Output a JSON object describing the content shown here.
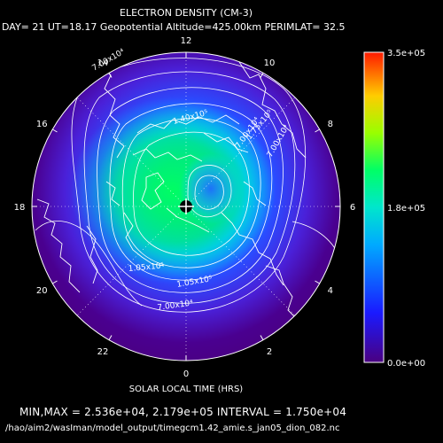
{
  "chart_data": {
    "type": "heatmap",
    "projection": "polar",
    "title": "ELECTRON DENSITY (CM-3)",
    "subtitle": "DAY= 21 UT=18.17 Geopotential Altitude=425.00km PERIMLAT= 32.5",
    "xlabel": "SOLAR LOCAL TIME (HRS)",
    "local_time_ticks": [
      "12",
      "10",
      "8",
      "6",
      "4",
      "2",
      "0",
      "22",
      "20",
      "18",
      "16",
      "14"
    ],
    "colorbar": {
      "ticks": [
        "3.5e+05",
        "1.8e+05",
        "0.0e+00"
      ],
      "min": 0,
      "max": 350000,
      "colormap": [
        "#4a0080",
        "#1a1aff",
        "#00bfff",
        "#00ff66",
        "#ccff00",
        "#ff9900",
        "#ff1a00"
      ]
    },
    "contour_labels": [
      "7.00x10⁴",
      "7.00x10⁴",
      "7.00x10⁴",
      "1.40x10⁵",
      "1.75x10⁵",
      "1.05x10⁵",
      "1.05x10⁵",
      "7.00x10⁴"
    ],
    "stats": {
      "min": 25360,
      "max": 217900,
      "interval": 17500
    },
    "stats_text": "MIN,MAX =  2.536e+04, 2.179e+05 INTERVAL =  1.750e+04",
    "file_path": "/hao/aim2/wasIman/model_output/timegcm1.42_amie.s_jan05_dion_082.nc"
  }
}
